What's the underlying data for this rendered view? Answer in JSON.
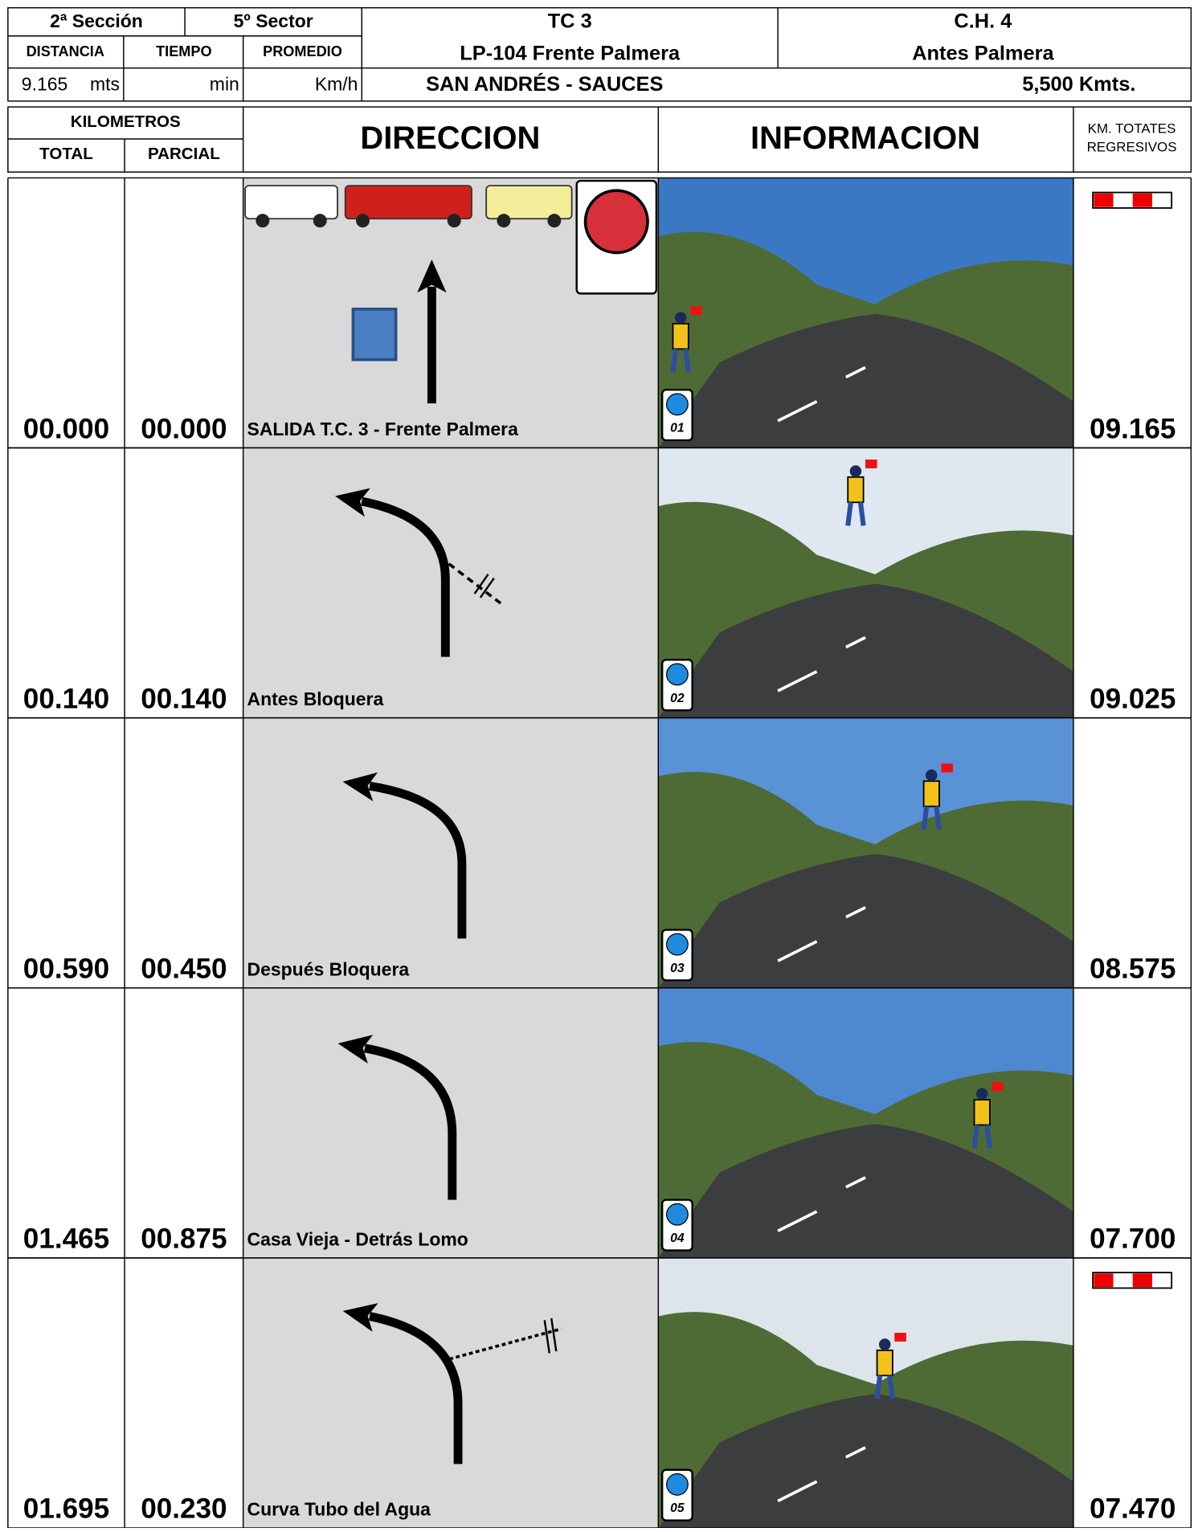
{
  "header": {
    "seccion": "2ª Sección",
    "sector": "5º Sector",
    "col_distancia": "DISTANCIA",
    "col_tiempo": "TIEMPO",
    "col_promedio": "PROMEDIO",
    "distancia_value": "9.165",
    "distancia_unit": "mts",
    "tiempo_unit": "min",
    "promedio_unit": "Km/h",
    "tc": "TC 3",
    "tc_name": "LP-104 Frente Palmera",
    "location": "SAN ANDRÉS - SAUCES",
    "ch": "C.H. 4",
    "ch_name": "Antes Palmera",
    "length": "5,500 Kmts."
  },
  "columns": {
    "kilometros": "KILOMETROS",
    "total": "TOTAL",
    "parcial": "PARCIAL",
    "direccion": "DIRECCION",
    "informacion": "INFORMACION",
    "regresivos_1": "KM. TOTATES",
    "regresivos_2": "REGRESIVOS"
  },
  "rows": [
    {
      "total": "00.000",
      "parcial": "00.000",
      "description": "SALIDA T.C. 3 - Frente Palmera",
      "remaining": "09.165",
      "photo": "01"
    },
    {
      "total": "00.140",
      "parcial": "00.140",
      "description": "Antes Bloquera",
      "remaining": "09.025",
      "photo": "02"
    },
    {
      "total": "00.590",
      "parcial": "00.450",
      "description": "Después Bloquera",
      "remaining": "08.575",
      "photo": "03"
    },
    {
      "total": "01.465",
      "parcial": "00.875",
      "description": "Casa Vieja - Detrás Lomo",
      "remaining": "07.700",
      "photo": "04"
    },
    {
      "total": "01.695",
      "parcial": "00.230",
      "description": "Curva Tubo del Agua",
      "remaining": "07.470",
      "photo": "05"
    }
  ]
}
